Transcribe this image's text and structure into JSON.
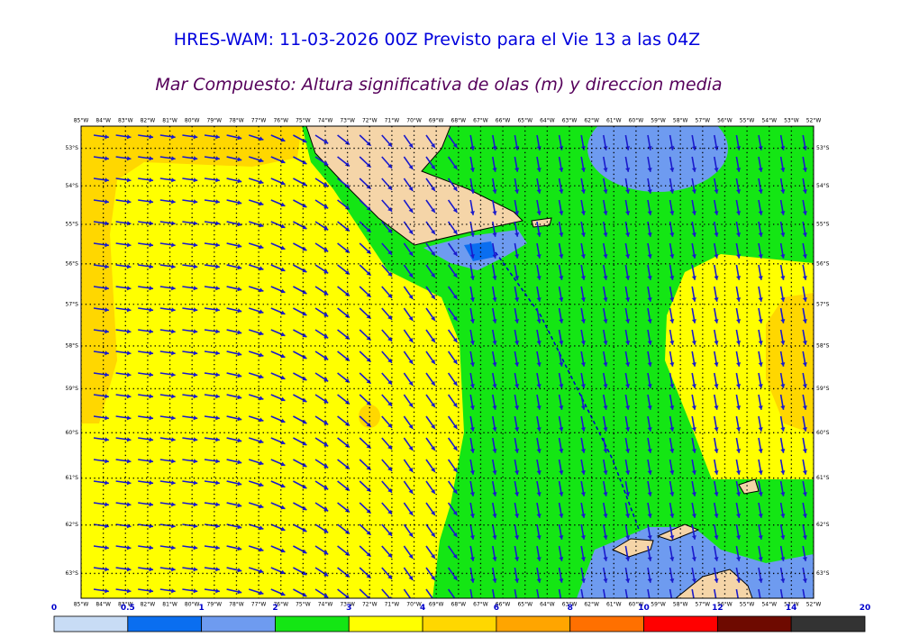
{
  "title": "HRES-WAM: 11-03-2026 00Z Previsto para el Vie 13 a las 04Z",
  "subtitle": "Mar Compuesto: Altura significativa de olas (m) y direccion media",
  "map": {
    "xlim": [
      -85,
      -52
    ],
    "ylim": [
      -52.4,
      -63.5
    ],
    "lon_ticks": [
      {
        "value": -85,
        "label": "85°W"
      },
      {
        "value": -84,
        "label": "84°W"
      },
      {
        "value": -83,
        "label": "83°W"
      },
      {
        "value": -82,
        "label": "82°W"
      },
      {
        "value": -81,
        "label": "81°W"
      },
      {
        "value": -80,
        "label": "80°W"
      },
      {
        "value": -79,
        "label": "79°W"
      },
      {
        "value": -78,
        "label": "78°W"
      },
      {
        "value": -77,
        "label": "77°W"
      },
      {
        "value": -76,
        "label": "76°W"
      },
      {
        "value": -75,
        "label": "75°W"
      },
      {
        "value": -74,
        "label": "74°W"
      },
      {
        "value": -73,
        "label": "73°W"
      },
      {
        "value": -72,
        "label": "72°W"
      },
      {
        "value": -71,
        "label": "71°W"
      },
      {
        "value": -70,
        "label": "70°W"
      },
      {
        "value": -69,
        "label": "69°W"
      },
      {
        "value": -68,
        "label": "68°W"
      },
      {
        "value": -67,
        "label": "67°W"
      },
      {
        "value": -66,
        "label": "66°W"
      },
      {
        "value": -65,
        "label": "65°W"
      },
      {
        "value": -64,
        "label": "64°W"
      },
      {
        "value": -63,
        "label": "63°W"
      },
      {
        "value": -62,
        "label": "62°W"
      },
      {
        "value": -61,
        "label": "61°W"
      },
      {
        "value": -60,
        "label": "60°W"
      },
      {
        "value": -59,
        "label": "59°W"
      },
      {
        "value": -58,
        "label": "58°W"
      },
      {
        "value": -57,
        "label": "57°W"
      },
      {
        "value": -56,
        "label": "56°W"
      },
      {
        "value": -55,
        "label": "55°W"
      },
      {
        "value": -54,
        "label": "54°W"
      },
      {
        "value": -53,
        "label": "53°W"
      },
      {
        "value": -52,
        "label": "52°W"
      }
    ],
    "lat_ticks": [
      {
        "value": -53,
        "label": "53°S"
      },
      {
        "value": -54,
        "label": "54°S"
      },
      {
        "value": -55,
        "label": "55°S"
      },
      {
        "value": -56,
        "label": "56°S"
      },
      {
        "value": -57,
        "label": "57°S"
      },
      {
        "value": -58,
        "label": "58°S"
      },
      {
        "value": -59,
        "label": "59°S"
      },
      {
        "value": -60,
        "label": "60°S"
      },
      {
        "value": -61,
        "label": "61°S"
      },
      {
        "value": -62,
        "label": "62°S"
      },
      {
        "value": -63,
        "label": "63°S"
      }
    ]
  },
  "colorbar": {
    "labels": [
      0,
      0.5,
      1,
      2,
      3,
      4,
      6,
      8,
      10,
      12,
      14,
      20
    ],
    "colors": [
      "#c8dcf5",
      "#0a6ef0",
      "#6e9bf0",
      "#14e614",
      "#ffff00",
      "#ffd700",
      "#ffa500",
      "#ff7000",
      "#ff0000",
      "#6e0a00",
      "#333333"
    ]
  }
}
